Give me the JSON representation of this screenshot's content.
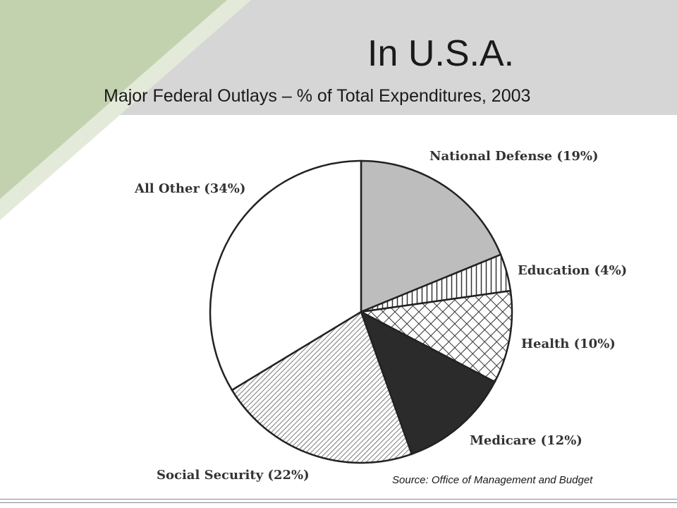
{
  "slide": {
    "title": "In U.S.A.",
    "subtitle": "Major Federal Outlays – % of Total Expenditures, 2003",
    "source": "Source: Office of Management and Budget"
  },
  "colors": {
    "banner": "#d6d6d6",
    "accent_green": "#c3d2ae",
    "accent_green_light": "#e4ead9"
  },
  "chart_data": {
    "type": "pie",
    "title": "",
    "slices": [
      {
        "label": "National Defense (19%)",
        "value": 19,
        "fill": "gray"
      },
      {
        "label": "Education (4%)",
        "value": 4,
        "fill": "vertical-hatch"
      },
      {
        "label": "Health (10%)",
        "value": 10,
        "fill": "crosshatch"
      },
      {
        "label": "Medicare (12%)",
        "value": 12,
        "fill": "dark"
      },
      {
        "label": "Social Security (22%)",
        "value": 22,
        "fill": "diagonal-hatch"
      },
      {
        "label": "All Other (34%)",
        "value": 34,
        "fill": "white"
      }
    ]
  }
}
